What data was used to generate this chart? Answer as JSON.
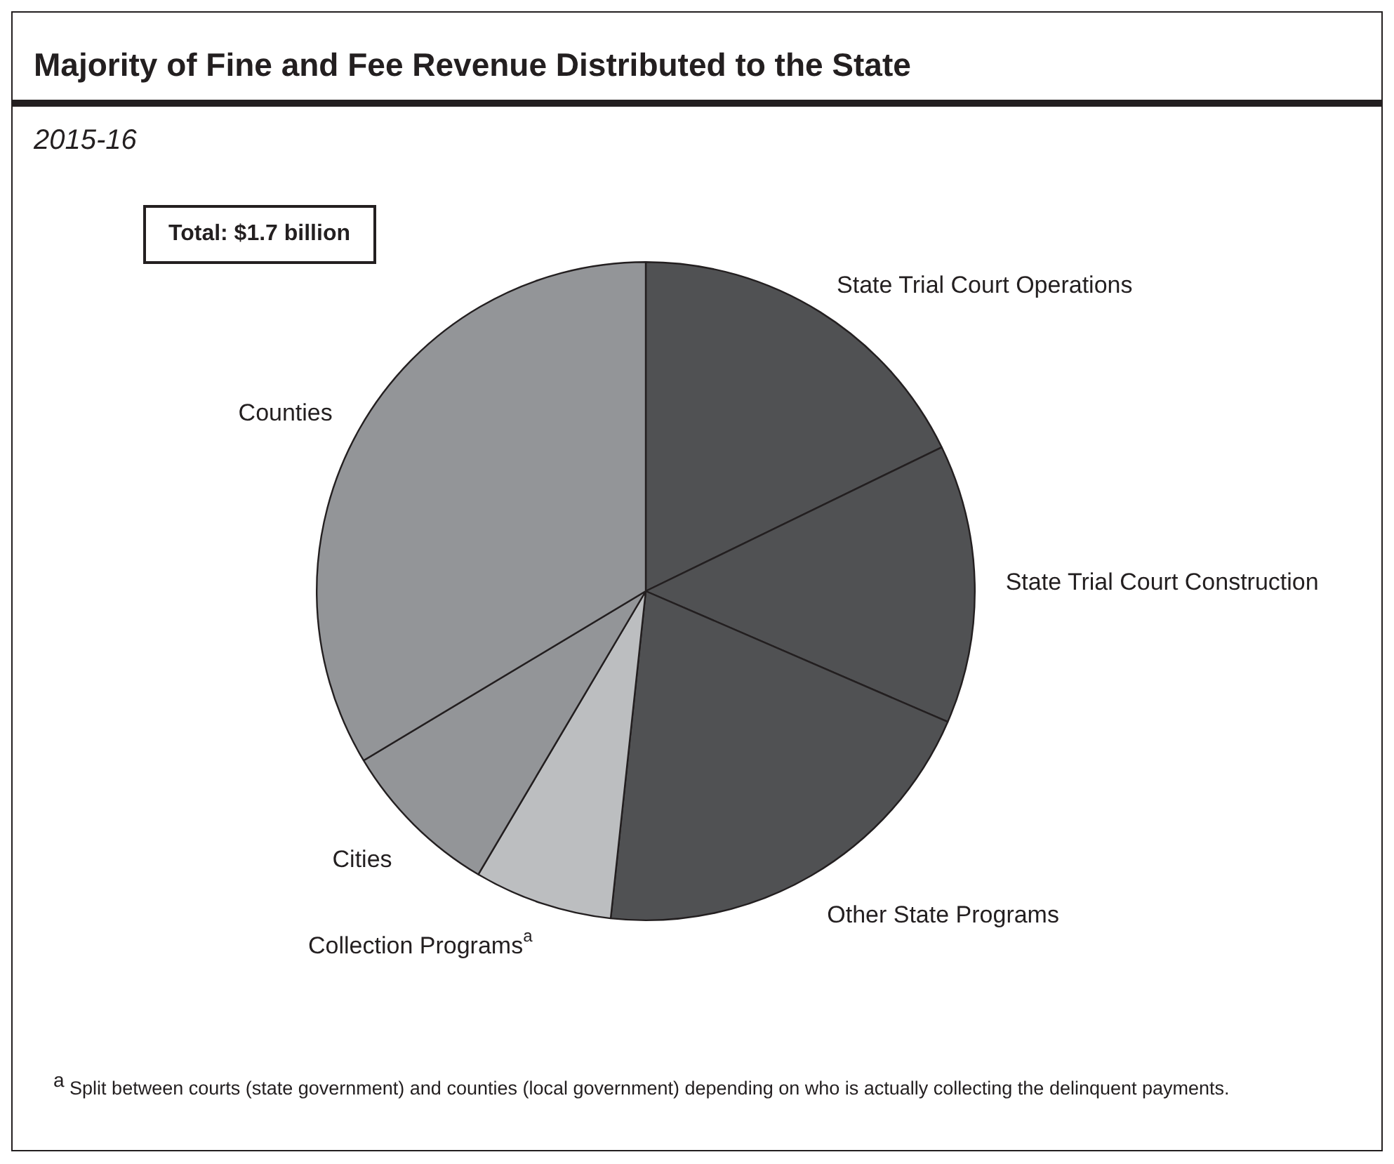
{
  "chart_data": {
    "type": "pie",
    "title": "Majority of Fine and Fee Revenue Distributed to the State",
    "subtitle": "2015-16",
    "categories": [
      "State Trial Court Operations",
      "State Trial Court Construction",
      "Other State Programs",
      "Collection Programs$^{a}$",
      "Cities",
      "Counties"
    ],
    "values": [
      17.8,
      13.7,
      20.2,
      6.8,
      7.9,
      33.6
    ],
    "colors": [
      "#505153",
      "#505153",
      "#505153",
      "#bcbec0",
      "#939598",
      "#939598"
    ],
    "annotations": [
      "Total: $1.7 billion",
      "$^{a}$ Split between courts (state government) and counties (local government) depending on who is actually collecting the delinquent payments."
    ]
  }
}
